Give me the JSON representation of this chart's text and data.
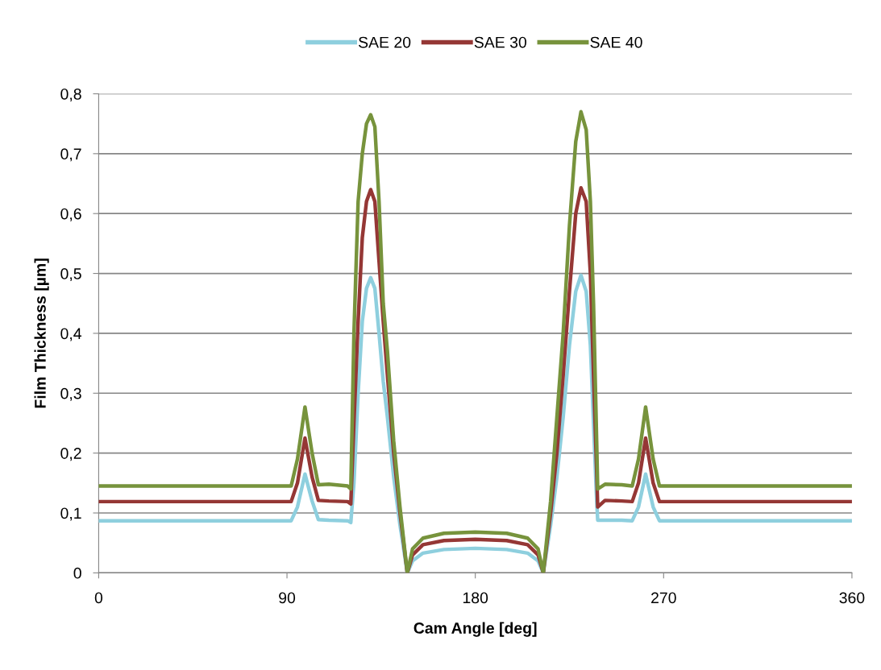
{
  "chart_data": {
    "type": "line",
    "xlabel": "Cam Angle [deg]",
    "ylabel": "Film Thickness [µm]",
    "x": [
      0,
      92,
      95,
      98.6,
      102,
      105,
      110,
      119,
      120.5,
      122,
      124,
      126,
      128,
      130,
      132,
      134,
      136,
      138,
      141,
      144,
      147.5,
      150,
      155,
      165,
      180,
      195,
      205,
      210,
      212.5,
      216,
      219,
      222,
      225,
      228,
      230.5,
      233,
      235,
      236.5,
      238,
      238.5,
      242,
      250,
      255,
      258,
      261.4,
      265,
      268,
      360
    ],
    "series": [
      {
        "name": "SAE 20",
        "color": "#8ecfde",
        "values": [
          0.087,
          0.087,
          0.11,
          0.165,
          0.12,
          0.089,
          0.088,
          0.087,
          0.084,
          0.15,
          0.3,
          0.42,
          0.475,
          0.493,
          0.475,
          0.4,
          0.32,
          0.26,
          0.16,
          0.08,
          0,
          0.02,
          0.033,
          0.039,
          0.041,
          0.039,
          0.033,
          0.02,
          0,
          0.08,
          0.16,
          0.26,
          0.38,
          0.47,
          0.497,
          0.47,
          0.38,
          0.25,
          0.12,
          0.088,
          0.088,
          0.088,
          0.087,
          0.11,
          0.165,
          0.11,
          0.087,
          0.087
        ]
      },
      {
        "name": "SAE 30",
        "color": "#953735",
        "values": [
          0.119,
          0.119,
          0.15,
          0.225,
          0.16,
          0.121,
          0.12,
          0.119,
          0.115,
          0.25,
          0.42,
          0.56,
          0.62,
          0.64,
          0.62,
          0.52,
          0.42,
          0.33,
          0.2,
          0.1,
          0,
          0.03,
          0.047,
          0.054,
          0.056,
          0.054,
          0.047,
          0.03,
          0,
          0.1,
          0.2,
          0.33,
          0.47,
          0.6,
          0.643,
          0.62,
          0.5,
          0.33,
          0.17,
          0.11,
          0.121,
          0.12,
          0.119,
          0.15,
          0.225,
          0.15,
          0.119,
          0.119
        ]
      },
      {
        "name": "SAE 40",
        "color": "#77933c",
        "values": [
          0.145,
          0.145,
          0.19,
          0.277,
          0.2,
          0.147,
          0.148,
          0.145,
          0.14,
          0.4,
          0.62,
          0.7,
          0.75,
          0.765,
          0.745,
          0.62,
          0.45,
          0.37,
          0.22,
          0.11,
          0,
          0.04,
          0.058,
          0.066,
          0.068,
          0.066,
          0.058,
          0.04,
          0,
          0.12,
          0.26,
          0.4,
          0.58,
          0.72,
          0.77,
          0.74,
          0.62,
          0.45,
          0.22,
          0.14,
          0.148,
          0.147,
          0.145,
          0.19,
          0.277,
          0.19,
          0.145,
          0.145
        ]
      }
    ],
    "xlim": [
      0,
      360
    ],
    "xticks": [
      0,
      90,
      180,
      270,
      360
    ],
    "ylim": [
      0,
      0.8
    ],
    "yticks": [
      0,
      {
        "value": 0.1,
        "label": "0,1"
      },
      {
        "value": 0.2,
        "label": "0,2"
      },
      {
        "value": 0.3,
        "label": "0,3"
      },
      {
        "value": 0.4,
        "label": "0,4"
      },
      {
        "value": 0.5,
        "label": "0,5"
      },
      {
        "value": 0.6,
        "label": "0,6"
      },
      {
        "value": 0.7,
        "label": "0,7"
      },
      {
        "value": 0.8,
        "label": "0,8"
      }
    ],
    "grid": "y",
    "legend": "top",
    "marker": "none",
    "line_style": "solid"
  }
}
